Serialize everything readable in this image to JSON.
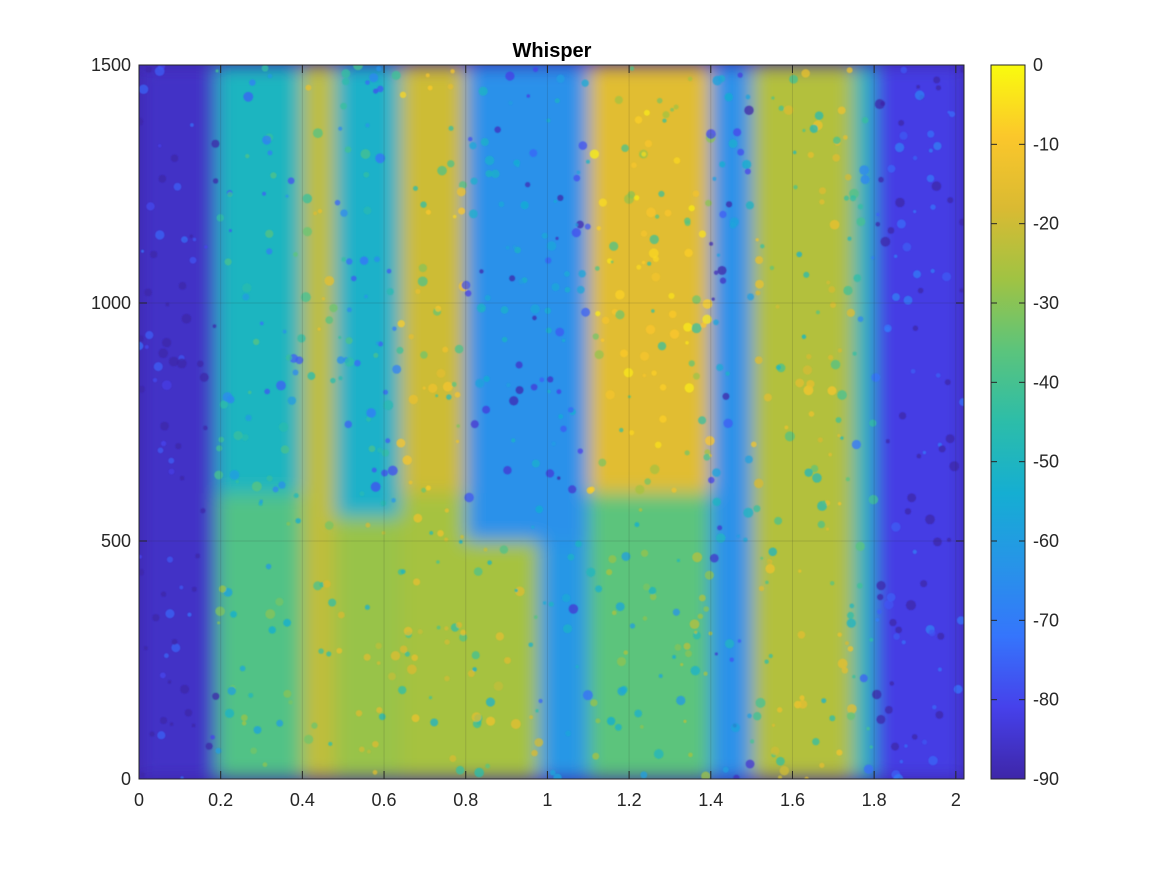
{
  "chart_data": {
    "type": "heatmap",
    "title": "Whisper",
    "xlabel": "",
    "ylabel": "",
    "xlim": [
      0,
      2.02
    ],
    "ylim": [
      0,
      1500
    ],
    "x_ticks": [
      0,
      0.2,
      0.4,
      0.6,
      0.8,
      1,
      1.2,
      1.4,
      1.6,
      1.8,
      2
    ],
    "x_tick_labels": [
      "0",
      "0.2",
      "0.4",
      "0.6",
      "0.8",
      "1",
      "1.2",
      "1.4",
      "1.6",
      "1.8",
      "2"
    ],
    "y_ticks": [
      0,
      500,
      1000,
      1500
    ],
    "y_tick_labels": [
      "0",
      "500",
      "1000",
      "1500"
    ],
    "grid": true,
    "colormap": "parula",
    "colorbar": {
      "range": [
        -90,
        0
      ],
      "ticks": [
        0,
        -10,
        -20,
        -30,
        -40,
        -50,
        -60,
        -70,
        -80,
        -90
      ],
      "tick_labels": [
        "0",
        "-10",
        "-20",
        "-30",
        "-40",
        "-50",
        "-60",
        "-70",
        "-80",
        "-90"
      ],
      "placement": "right"
    },
    "time_segments": [
      {
        "x": [
          0.0,
          0.19
        ],
        "freq": [
          0,
          1500
        ],
        "level_db": -86
      },
      {
        "x": [
          0.19,
          0.4
        ],
        "freq": [
          0,
          1500
        ],
        "level_db": -50
      },
      {
        "x": [
          0.19,
          0.4
        ],
        "freq": [
          0,
          600
        ],
        "level_db": -38
      },
      {
        "x": [
          0.4,
          0.48
        ],
        "freq": [
          0,
          1500
        ],
        "level_db": -22
      },
      {
        "x": [
          0.48,
          0.64
        ],
        "freq": [
          0,
          1500
        ],
        "level_db": -52
      },
      {
        "x": [
          0.48,
          0.64
        ],
        "freq": [
          0,
          550
        ],
        "level_db": -28
      },
      {
        "x": [
          0.64,
          0.8
        ],
        "freq": [
          600,
          1500
        ],
        "level_db": -20
      },
      {
        "x": [
          0.64,
          0.98
        ],
        "freq": [
          0,
          600
        ],
        "level_db": -26
      },
      {
        "x": [
          0.8,
          1.1
        ],
        "freq": [
          500,
          1500
        ],
        "level_db": -64
      },
      {
        "x": [
          0.98,
          1.1
        ],
        "freq": [
          0,
          500
        ],
        "level_db": -62
      },
      {
        "x": [
          1.1,
          1.4
        ],
        "freq": [
          600,
          1500
        ],
        "level_db": -16
      },
      {
        "x": [
          1.1,
          1.4
        ],
        "freq": [
          0,
          600
        ],
        "level_db": -36
      },
      {
        "x": [
          1.4,
          1.5
        ],
        "freq": [
          0,
          1500
        ],
        "level_db": -64
      },
      {
        "x": [
          1.5,
          1.75
        ],
        "freq": [
          0,
          1500
        ],
        "level_db": -24
      },
      {
        "x": [
          1.75,
          1.8
        ],
        "freq": [
          0,
          1500
        ],
        "level_db": -50
      },
      {
        "x": [
          1.8,
          2.02
        ],
        "freq": [
          0,
          1500
        ],
        "level_db": -82
      }
    ]
  }
}
